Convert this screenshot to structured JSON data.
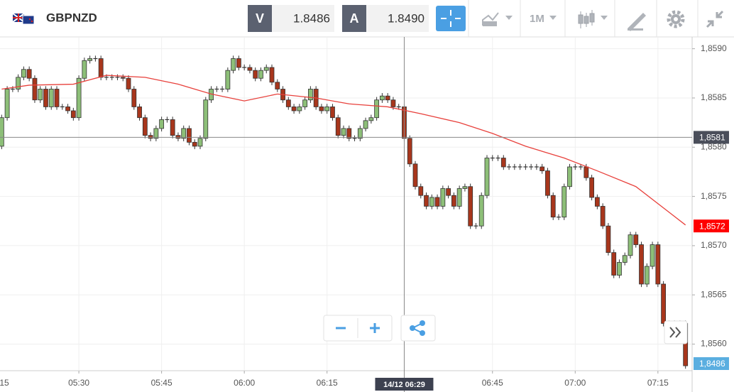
{
  "toolbar": {
    "symbol": "GBPNZD",
    "sell_label": "V",
    "sell_price": "1.8486",
    "buy_label": "A",
    "buy_price": "1.8490",
    "timeframe": "1M"
  },
  "chart_data": {
    "type": "candlestick",
    "x": [
      316,
      317,
      318,
      319,
      320,
      321,
      322,
      323,
      324,
      325,
      326,
      327,
      328,
      329,
      330,
      331,
      332,
      333,
      334,
      335,
      336,
      337,
      338,
      339,
      340,
      341,
      342,
      343,
      344,
      345,
      346,
      347,
      348,
      349,
      350,
      351,
      352,
      353,
      354,
      355,
      356,
      357,
      358,
      359,
      360,
      361,
      362,
      363,
      364,
      365,
      366,
      367,
      368,
      369,
      370,
      371,
      372,
      373,
      374,
      375,
      376,
      377,
      378,
      379,
      380,
      381,
      382,
      383,
      384,
      385,
      386,
      387,
      388,
      389,
      390,
      391,
      392,
      393,
      394,
      395,
      396,
      397,
      398,
      399,
      400,
      401,
      402,
      403,
      404,
      405,
      406,
      407,
      408,
      409,
      410,
      411,
      412,
      413,
      414,
      415,
      416,
      417,
      418,
      419,
      420,
      421,
      422,
      423,
      424,
      425,
      426,
      427,
      428,
      429,
      430,
      431,
      432,
      433,
      434,
      435,
      436,
      437,
      438,
      439,
      440
    ],
    "open": [
      1.85801,
      1.8583,
      1.85859,
      1.85859,
      1.85871,
      1.85879,
      1.8587,
      1.85848,
      1.85859,
      1.85841,
      1.85859,
      1.85841,
      1.85841,
      1.85837,
      1.8583,
      1.8587,
      1.85888,
      1.8589,
      1.8589,
      1.85871,
      1.85871,
      1.85871,
      1.85871,
      1.8587,
      1.85859,
      1.85841,
      1.8583,
      1.85812,
      1.85809,
      1.85819,
      1.85828,
      1.85828,
      1.85812,
      1.85809,
      1.85819,
      1.85805,
      1.85801,
      1.85809,
      1.85848,
      1.85859,
      1.85859,
      1.85859,
      1.85878,
      1.8589,
      1.85881,
      1.85881,
      1.85878,
      1.8587,
      1.85878,
      1.85881,
      1.85866,
      1.85859,
      1.85848,
      1.85841,
      1.85837,
      1.85841,
      1.85848,
      1.85859,
      1.85841,
      1.85837,
      1.85841,
      1.8583,
      1.85812,
      1.85819,
      1.85809,
      1.85809,
      1.85819,
      1.85827,
      1.8583,
      1.85848,
      1.85852,
      1.85848,
      1.85841,
      1.85841,
      1.85809,
      1.85783,
      1.8576,
      1.85751,
      1.8574,
      1.85749,
      1.8574,
      1.85758,
      1.85751,
      1.8574,
      1.85758,
      1.8576,
      1.8572,
      1.8572,
      1.85751,
      1.85789,
      1.85789,
      1.85789,
      1.8578,
      1.8578,
      1.8578,
      1.8578,
      1.8578,
      1.8578,
      1.8578,
      1.85776,
      1.85751,
      1.85729,
      1.85729,
      1.8576,
      1.8578,
      1.8578,
      1.8578,
      1.85769,
      1.85749,
      1.8574,
      1.8572,
      1.85693,
      1.8567,
      1.85683,
      1.8569,
      1.85711,
      1.85701,
      1.85661,
      1.85679,
      1.85701,
      1.85661,
      1.85621,
      1.85621,
      1.85621,
      1.85621
    ],
    "high": [
      1.85833,
      1.85862,
      1.85862,
      1.85874,
      1.85882,
      1.85882,
      1.85873,
      1.85862,
      1.85862,
      1.85862,
      1.85862,
      1.85844,
      1.85844,
      1.8584,
      1.85873,
      1.85891,
      1.85893,
      1.85893,
      1.85893,
      1.85874,
      1.85874,
      1.85874,
      1.85874,
      1.85873,
      1.85862,
      1.85844,
      1.85833,
      1.85815,
      1.85822,
      1.85831,
      1.85831,
      1.85831,
      1.85815,
      1.85822,
      1.85822,
      1.85808,
      1.85812,
      1.85851,
      1.85862,
      1.85862,
      1.85862,
      1.85881,
      1.85893,
      1.85893,
      1.85884,
      1.85884,
      1.85881,
      1.85881,
      1.85884,
      1.85884,
      1.85869,
      1.85862,
      1.85851,
      1.85844,
      1.85844,
      1.85851,
      1.85862,
      1.85862,
      1.85844,
      1.85844,
      1.85844,
      1.85833,
      1.85822,
      1.85822,
      1.85812,
      1.85822,
      1.8583,
      1.85833,
      1.85851,
      1.85855,
      1.85855,
      1.85851,
      1.85844,
      1.85844,
      1.85812,
      1.85786,
      1.85763,
      1.85754,
      1.85752,
      1.85752,
      1.85761,
      1.85761,
      1.85754,
      1.85761,
      1.85763,
      1.85763,
      1.85723,
      1.85754,
      1.85792,
      1.85792,
      1.85792,
      1.85792,
      1.85783,
      1.85783,
      1.85783,
      1.85783,
      1.85783,
      1.85783,
      1.85783,
      1.85779,
      1.85754,
      1.85732,
      1.85763,
      1.85783,
      1.85783,
      1.85783,
      1.85783,
      1.85772,
      1.85752,
      1.85743,
      1.85723,
      1.85696,
      1.85686,
      1.85693,
      1.85714,
      1.85714,
      1.85704,
      1.85682,
      1.85704,
      1.85704,
      1.85664,
      1.85624,
      1.85624,
      1.85624,
      1.85624
    ],
    "low": [
      1.85798,
      1.85827,
      1.85856,
      1.85856,
      1.85868,
      1.85867,
      1.85845,
      1.85845,
      1.85838,
      1.85838,
      1.85838,
      1.85838,
      1.85834,
      1.85827,
      1.85827,
      1.85867,
      1.85885,
      1.85887,
      1.85868,
      1.85868,
      1.85868,
      1.85868,
      1.85867,
      1.85856,
      1.85838,
      1.85827,
      1.85809,
      1.85806,
      1.85806,
      1.85816,
      1.85825,
      1.85809,
      1.85806,
      1.85806,
      1.85802,
      1.85798,
      1.85798,
      1.85806,
      1.85845,
      1.85856,
      1.85856,
      1.85856,
      1.85875,
      1.85878,
      1.85878,
      1.85875,
      1.85867,
      1.85867,
      1.85875,
      1.85863,
      1.85856,
      1.85845,
      1.85838,
      1.85834,
      1.85834,
      1.85838,
      1.85845,
      1.85838,
      1.85834,
      1.85834,
      1.85827,
      1.85809,
      1.85809,
      1.85806,
      1.85806,
      1.85806,
      1.85816,
      1.85824,
      1.85827,
      1.85845,
      1.85845,
      1.85838,
      1.85838,
      1.85806,
      1.8578,
      1.85757,
      1.85748,
      1.85737,
      1.85737,
      1.85737,
      1.85737,
      1.85748,
      1.85737,
      1.85737,
      1.85755,
      1.85717,
      1.85717,
      1.85717,
      1.85748,
      1.85786,
      1.85786,
      1.85777,
      1.85777,
      1.85777,
      1.85777,
      1.85777,
      1.85777,
      1.85777,
      1.85773,
      1.85748,
      1.85726,
      1.85726,
      1.85726,
      1.85757,
      1.85777,
      1.85777,
      1.85766,
      1.85746,
      1.85737,
      1.85717,
      1.8569,
      1.85667,
      1.85667,
      1.8568,
      1.85687,
      1.85698,
      1.85658,
      1.85658,
      1.85676,
      1.85658,
      1.85618,
      1.85618,
      1.85618,
      1.85618,
      1.85575
    ],
    "close": [
      1.8583,
      1.85859,
      1.85859,
      1.85871,
      1.85879,
      1.8587,
      1.85848,
      1.85859,
      1.85841,
      1.85859,
      1.85841,
      1.85841,
      1.85837,
      1.8583,
      1.8587,
      1.85888,
      1.8589,
      1.8589,
      1.85871,
      1.85871,
      1.85871,
      1.85871,
      1.8587,
      1.85859,
      1.85841,
      1.8583,
      1.85812,
      1.85809,
      1.85819,
      1.85828,
      1.85828,
      1.85812,
      1.85809,
      1.85819,
      1.85805,
      1.85801,
      1.85809,
      1.85848,
      1.85859,
      1.85859,
      1.85859,
      1.85878,
      1.8589,
      1.85881,
      1.85881,
      1.85878,
      1.8587,
      1.85878,
      1.85881,
      1.85866,
      1.85859,
      1.85848,
      1.85841,
      1.85837,
      1.85841,
      1.85848,
      1.85859,
      1.85841,
      1.85837,
      1.85841,
      1.8583,
      1.85812,
      1.85819,
      1.85809,
      1.85809,
      1.85819,
      1.85827,
      1.8583,
      1.85848,
      1.85852,
      1.85848,
      1.85841,
      1.85841,
      1.85809,
      1.85783,
      1.8576,
      1.85751,
      1.8574,
      1.85749,
      1.8574,
      1.85758,
      1.85751,
      1.8574,
      1.85758,
      1.8576,
      1.8572,
      1.8572,
      1.85751,
      1.85789,
      1.85789,
      1.85789,
      1.8578,
      1.8578,
      1.8578,
      1.8578,
      1.8578,
      1.8578,
      1.8578,
      1.85776,
      1.85751,
      1.85729,
      1.85729,
      1.8576,
      1.8578,
      1.8578,
      1.8578,
      1.85769,
      1.85749,
      1.8574,
      1.8572,
      1.85693,
      1.8567,
      1.85683,
      1.8569,
      1.85711,
      1.85701,
      1.85661,
      1.85679,
      1.85701,
      1.85661,
      1.85621,
      1.85621,
      1.85621,
      1.85621,
      1.85578
    ],
    "up_color": "#8dbf78",
    "down_color": "#a8361c",
    "ma": {
      "color": "#e8413c",
      "x": [
        316,
        321,
        329,
        335,
        342,
        348,
        354,
        360,
        366,
        373,
        379,
        386,
        392,
        399,
        405,
        411,
        418,
        424,
        431,
        437,
        440
      ],
      "values": [
        1.85859,
        1.85863,
        1.85864,
        1.85873,
        1.85871,
        1.85864,
        1.85854,
        1.85847,
        1.85854,
        1.8585,
        1.85844,
        1.85841,
        1.85834,
        1.85825,
        1.85814,
        1.85801,
        1.85789,
        1.85776,
        1.8576,
        1.85734,
        1.85721
      ]
    },
    "xlim": [
      315.7,
      441.2
    ],
    "ylim": [
      1.85573,
      1.85912
    ],
    "xticks": [
      {
        "value": 315,
        "label": "15"
      },
      {
        "value": 330,
        "label": "05:30"
      },
      {
        "value": 345,
        "label": "05:45"
      },
      {
        "value": 360,
        "label": "06:00"
      },
      {
        "value": 375,
        "label": "06:15"
      },
      {
        "value": 405,
        "label": "06:45"
      },
      {
        "value": 420,
        "label": "07:00"
      },
      {
        "value": 435,
        "label": "07:15"
      }
    ],
    "yticks": [
      {
        "value": 1.859,
        "label": "1,8590"
      },
      {
        "value": 1.8585,
        "label": "1,8585"
      },
      {
        "value": 1.858,
        "label": "1,8580"
      },
      {
        "value": 1.8575,
        "label": "1,8575"
      },
      {
        "value": 1.857,
        "label": "1,8570"
      },
      {
        "value": 1.8565,
        "label": "1,8565"
      },
      {
        "value": 1.856,
        "label": "1,8560"
      }
    ],
    "grid": true,
    "crosshair": {
      "x": {
        "value": 389,
        "label": "14/12 06:29"
      },
      "y": {
        "value": 1.8581,
        "label": "1,8581"
      }
    },
    "last_price": {
      "value": 1.8572,
      "label": "1,8572",
      "color": "#ff0000"
    },
    "bid_label": "1,8486"
  }
}
